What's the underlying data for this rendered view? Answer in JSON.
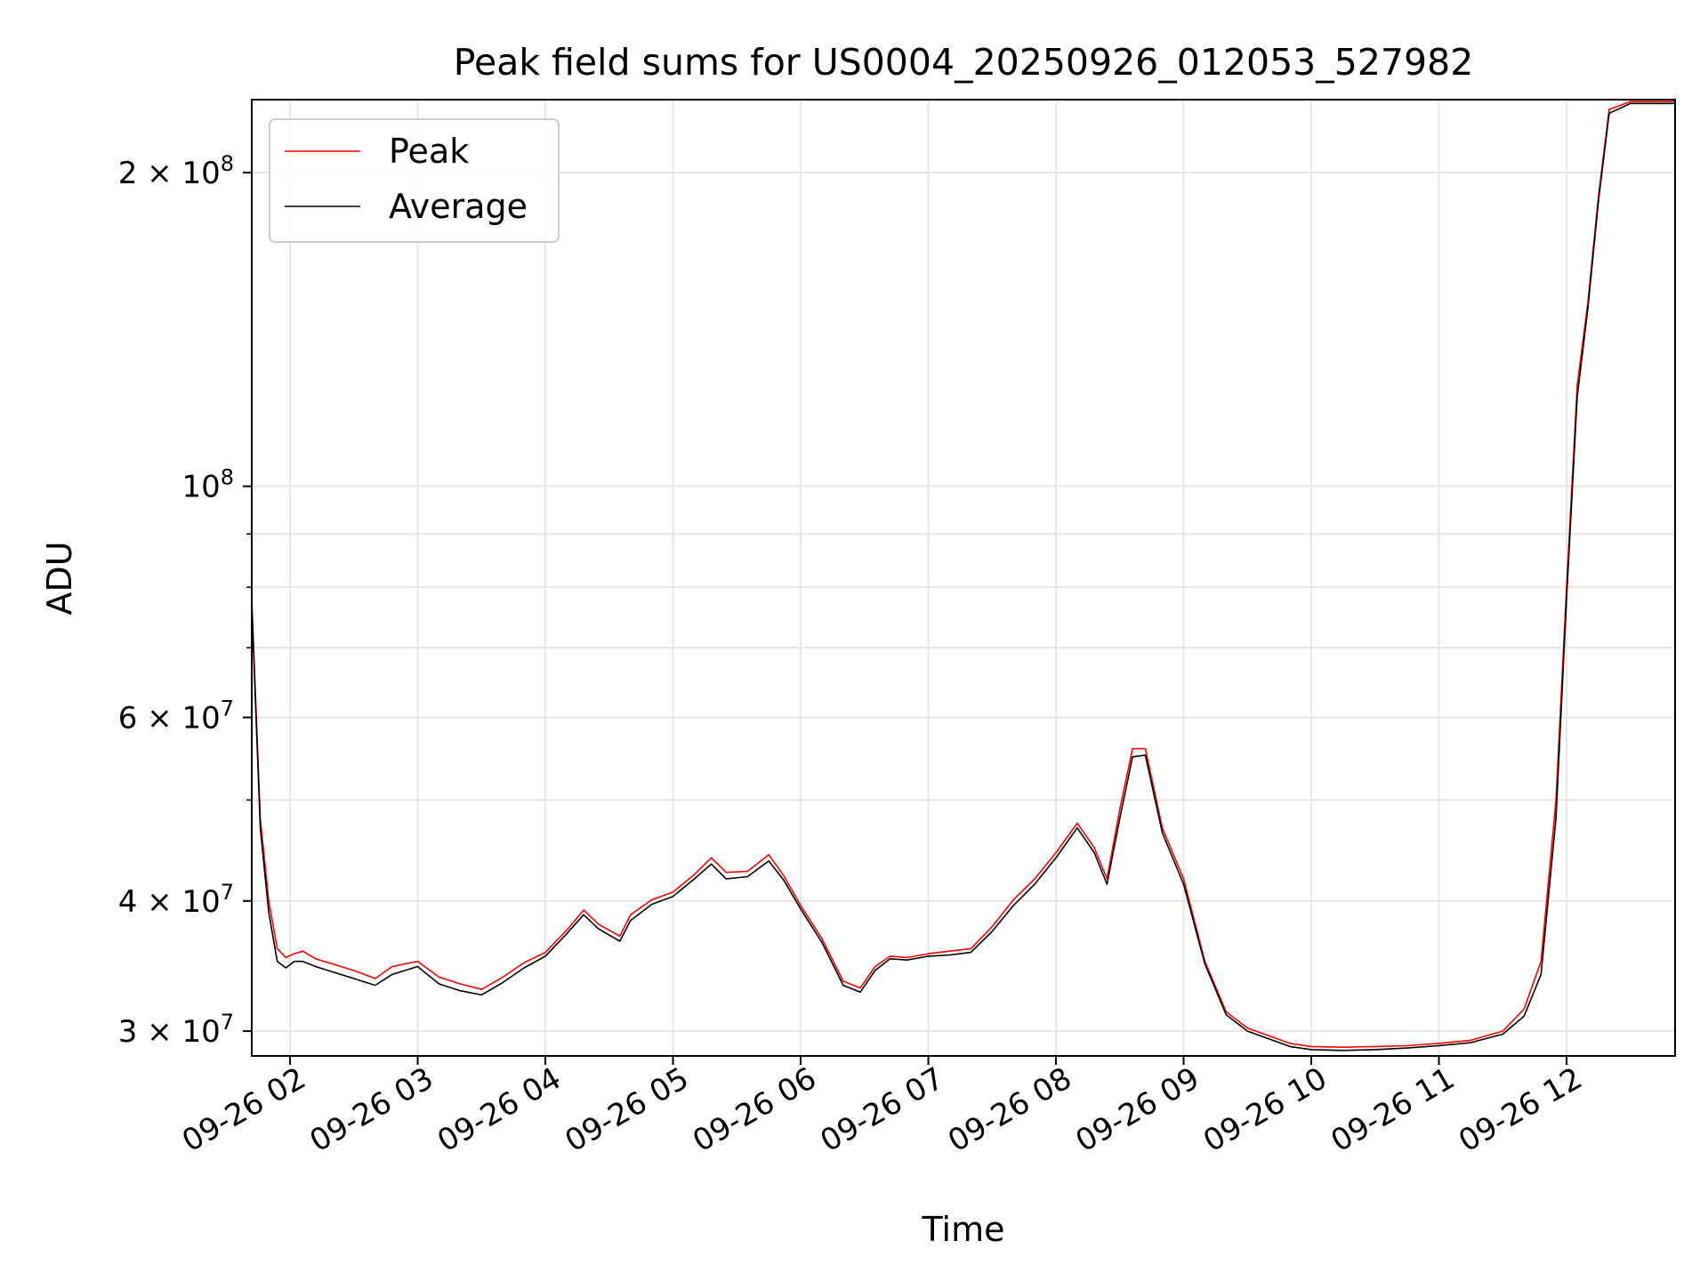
{
  "chart_data": {
    "type": "line",
    "title": "Peak field sums for US0004_20250926_012053_527982",
    "xlabel": "Time",
    "ylabel": "ADU",
    "yscale": "log",
    "grid": true,
    "legend_position": "top-left",
    "xlim": [
      "2025-09-26T01:42",
      "2025-09-26T12:51"
    ],
    "ylim": [
      28400000,
      235000000
    ],
    "x_ticks": [
      {
        "t": "2025-09-26T02:00",
        "label": "09-26 02"
      },
      {
        "t": "2025-09-26T03:00",
        "label": "09-26 03"
      },
      {
        "t": "2025-09-26T04:00",
        "label": "09-26 04"
      },
      {
        "t": "2025-09-26T05:00",
        "label": "09-26 05"
      },
      {
        "t": "2025-09-26T06:00",
        "label": "09-26 06"
      },
      {
        "t": "2025-09-26T07:00",
        "label": "09-26 07"
      },
      {
        "t": "2025-09-26T08:00",
        "label": "09-26 08"
      },
      {
        "t": "2025-09-26T09:00",
        "label": "09-26 09"
      },
      {
        "t": "2025-09-26T10:00",
        "label": "09-26 10"
      },
      {
        "t": "2025-09-26T11:00",
        "label": "09-26 11"
      },
      {
        "t": "2025-09-26T12:00",
        "label": "09-26 12"
      }
    ],
    "y_major_ticks": [
      {
        "v": 30000000,
        "mant": "3",
        "exp": "7"
      },
      {
        "v": 40000000,
        "mant": "4",
        "exp": "7"
      },
      {
        "v": 60000000,
        "mant": "6",
        "exp": "7"
      },
      {
        "v": 100000000,
        "mant": "",
        "exp": "8"
      },
      {
        "v": 200000000,
        "mant": "2",
        "exp": "8"
      }
    ],
    "y_minor_ticks": [
      50000000,
      70000000,
      80000000,
      90000000
    ],
    "series": [
      {
        "name": "Peak",
        "color": "#ff0000",
        "x": [
          "2025-09-26T01:42",
          "2025-09-26T01:46",
          "2025-09-26T01:50",
          "2025-09-26T01:54",
          "2025-09-26T01:58",
          "2025-09-26T02:02",
          "2025-09-26T02:06",
          "2025-09-26T02:12",
          "2025-09-26T02:20",
          "2025-09-26T02:30",
          "2025-09-26T02:40",
          "2025-09-26T02:48",
          "2025-09-26T03:00",
          "2025-09-26T03:10",
          "2025-09-26T03:20",
          "2025-09-26T03:30",
          "2025-09-26T03:40",
          "2025-09-26T03:50",
          "2025-09-26T04:00",
          "2025-09-26T04:10",
          "2025-09-26T04:18",
          "2025-09-26T04:25",
          "2025-09-26T04:35",
          "2025-09-26T04:40",
          "2025-09-26T04:50",
          "2025-09-26T05:00",
          "2025-09-26T05:10",
          "2025-09-26T05:18",
          "2025-09-26T05:25",
          "2025-09-26T05:35",
          "2025-09-26T05:45",
          "2025-09-26T05:52",
          "2025-09-26T06:00",
          "2025-09-26T06:10",
          "2025-09-26T06:20",
          "2025-09-26T06:28",
          "2025-09-26T06:35",
          "2025-09-26T06:42",
          "2025-09-26T06:50",
          "2025-09-26T07:00",
          "2025-09-26T07:10",
          "2025-09-26T07:20",
          "2025-09-26T07:30",
          "2025-09-26T07:40",
          "2025-09-26T07:50",
          "2025-09-26T08:00",
          "2025-09-26T08:10",
          "2025-09-26T08:18",
          "2025-09-26T08:24",
          "2025-09-26T08:30",
          "2025-09-26T08:36",
          "2025-09-26T08:42",
          "2025-09-26T08:50",
          "2025-09-26T09:00",
          "2025-09-26T09:10",
          "2025-09-26T09:20",
          "2025-09-26T09:30",
          "2025-09-26T09:40",
          "2025-09-26T09:50",
          "2025-09-26T10:00",
          "2025-09-26T10:15",
          "2025-09-26T10:30",
          "2025-09-26T10:45",
          "2025-09-26T11:00",
          "2025-09-26T11:15",
          "2025-09-26T11:30",
          "2025-09-26T11:40",
          "2025-09-26T11:48",
          "2025-09-26T11:55",
          "2025-09-26T12:00",
          "2025-09-26T12:05",
          "2025-09-26T12:10",
          "2025-09-26T12:15",
          "2025-09-26T12:20",
          "2025-09-26T12:30",
          "2025-09-26T12:40",
          "2025-09-26T12:51"
        ],
        "y": [
          78000000,
          48000000,
          40000000,
          36000000,
          35300000,
          35600000,
          35800000,
          35200000,
          34800000,
          34300000,
          33700000,
          34600000,
          35000000,
          33800000,
          33300000,
          32900000,
          33800000,
          34900000,
          35700000,
          37500000,
          39200000,
          38000000,
          37000000,
          38800000,
          40100000,
          40800000,
          42400000,
          44000000,
          42600000,
          42700000,
          44300000,
          42300000,
          39600000,
          36800000,
          33500000,
          33000000,
          34600000,
          35400000,
          35300000,
          35600000,
          35800000,
          36000000,
          37800000,
          40100000,
          42000000,
          44500000,
          47500000,
          45000000,
          42000000,
          49000000,
          56000000,
          56000000,
          47000000,
          42000000,
          35000000,
          31300000,
          30200000,
          29700000,
          29200000,
          29000000,
          28950000,
          29000000,
          29050000,
          29200000,
          29400000,
          30000000,
          31500000,
          35000000,
          50000000,
          80000000,
          125000000,
          150000000,
          190000000,
          230000000,
          234000000,
          234000000,
          234000000
        ]
      },
      {
        "name": "Average",
        "color": "#000000",
        "x": [
          "2025-09-26T01:42",
          "2025-09-26T01:46",
          "2025-09-26T01:50",
          "2025-09-26T01:54",
          "2025-09-26T01:58",
          "2025-09-26T02:02",
          "2025-09-26T02:06",
          "2025-09-26T02:12",
          "2025-09-26T02:20",
          "2025-09-26T02:30",
          "2025-09-26T02:40",
          "2025-09-26T02:48",
          "2025-09-26T03:00",
          "2025-09-26T03:10",
          "2025-09-26T03:20",
          "2025-09-26T03:30",
          "2025-09-26T03:40",
          "2025-09-26T03:50",
          "2025-09-26T04:00",
          "2025-09-26T04:10",
          "2025-09-26T04:18",
          "2025-09-26T04:25",
          "2025-09-26T04:35",
          "2025-09-26T04:40",
          "2025-09-26T04:50",
          "2025-09-26T05:00",
          "2025-09-26T05:10",
          "2025-09-26T05:18",
          "2025-09-26T05:25",
          "2025-09-26T05:35",
          "2025-09-26T05:45",
          "2025-09-26T05:52",
          "2025-09-26T06:00",
          "2025-09-26T06:10",
          "2025-09-26T06:20",
          "2025-09-26T06:28",
          "2025-09-26T06:35",
          "2025-09-26T06:42",
          "2025-09-26T06:50",
          "2025-09-26T07:00",
          "2025-09-26T07:10",
          "2025-09-26T07:20",
          "2025-09-26T07:30",
          "2025-09-26T07:40",
          "2025-09-26T07:50",
          "2025-09-26T08:00",
          "2025-09-26T08:10",
          "2025-09-26T08:18",
          "2025-09-26T08:24",
          "2025-09-26T08:30",
          "2025-09-26T08:36",
          "2025-09-26T08:42",
          "2025-09-26T08:50",
          "2025-09-26T09:00",
          "2025-09-26T09:10",
          "2025-09-26T09:20",
          "2025-09-26T09:30",
          "2025-09-26T09:40",
          "2025-09-26T09:50",
          "2025-09-26T10:00",
          "2025-09-26T10:15",
          "2025-09-26T10:30",
          "2025-09-26T10:45",
          "2025-09-26T11:00",
          "2025-09-26T11:15",
          "2025-09-26T11:30",
          "2025-09-26T11:40",
          "2025-09-26T11:48",
          "2025-09-26T11:55",
          "2025-09-26T12:00",
          "2025-09-26T12:05",
          "2025-09-26T12:10",
          "2025-09-26T12:15",
          "2025-09-26T12:20",
          "2025-09-26T12:30",
          "2025-09-26T12:40",
          "2025-09-26T12:51"
        ],
        "y": [
          77000000,
          47000000,
          39000000,
          35000000,
          34500000,
          35000000,
          35000000,
          34600000,
          34200000,
          33700000,
          33200000,
          34000000,
          34600000,
          33300000,
          32800000,
          32500000,
          33400000,
          34500000,
          35400000,
          37200000,
          38800000,
          37600000,
          36600000,
          38300000,
          39700000,
          40400000,
          42000000,
          43400000,
          42000000,
          42200000,
          43700000,
          41900000,
          39300000,
          36500000,
          33200000,
          32700000,
          34300000,
          35200000,
          35100000,
          35400000,
          35500000,
          35700000,
          37400000,
          39600000,
          41500000,
          44000000,
          47000000,
          44500000,
          41500000,
          48000000,
          55000000,
          55200000,
          46500000,
          41500000,
          34800000,
          31100000,
          30000000,
          29500000,
          29000000,
          28800000,
          28750000,
          28800000,
          28900000,
          29050000,
          29250000,
          29800000,
          31000000,
          34000000,
          48000000,
          78000000,
          122000000,
          148000000,
          188000000,
          228000000,
          233000000,
          233000000,
          233000000
        ]
      }
    ]
  }
}
